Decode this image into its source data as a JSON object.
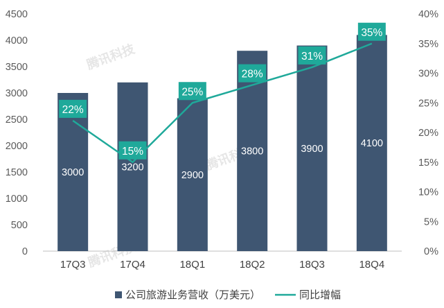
{
  "chart_data": {
    "type": "bar",
    "title": "",
    "xlabel": "",
    "ylabel": "",
    "categories": [
      "17Q3",
      "17Q4",
      "18Q1",
      "18Q2",
      "18Q3",
      "18Q4"
    ],
    "series": [
      {
        "name": "公司旅游业务营收（万美元）",
        "kind": "bar",
        "axis": "left",
        "color": "#3f5672",
        "values": [
          3000,
          3200,
          2900,
          3800,
          3900,
          4100
        ],
        "data_labels": [
          "3000",
          "3200",
          "2900",
          "3800",
          "3900",
          "4100"
        ]
      },
      {
        "name": "同比增幅",
        "kind": "line",
        "axis": "right",
        "color": "#1fa99a",
        "values": [
          22,
          15,
          25,
          28,
          31,
          35
        ],
        "data_labels": [
          "22%",
          "15%",
          "25%",
          "28%",
          "31%",
          "35%"
        ]
      }
    ],
    "left_axis": {
      "ylim": [
        0,
        4500
      ],
      "ticks": [
        0,
        500,
        1000,
        1500,
        2000,
        2500,
        3000,
        3500,
        4000,
        4500
      ],
      "tick_labels": [
        "0",
        "500",
        "1000",
        "1500",
        "2000",
        "2500",
        "3000",
        "3500",
        "4000",
        "4500"
      ]
    },
    "right_axis": {
      "ylim": [
        0,
        40
      ],
      "ticks": [
        0,
        5,
        10,
        15,
        20,
        25,
        30,
        35,
        40
      ],
      "tick_labels": [
        "0%",
        "5%",
        "10%",
        "15%",
        "20%",
        "25%",
        "30%",
        "35%",
        "40%"
      ]
    },
    "grid": false,
    "legend_position": "bottom"
  },
  "watermark": "腾讯科技",
  "colors": {
    "bar": "#3f5672",
    "line": "#1fa99a",
    "axis_text": "#5a5a5a",
    "bar_label": "#ffffff",
    "line_label_bg": "#1fa99a",
    "line_label_text": "#ffffff"
  }
}
